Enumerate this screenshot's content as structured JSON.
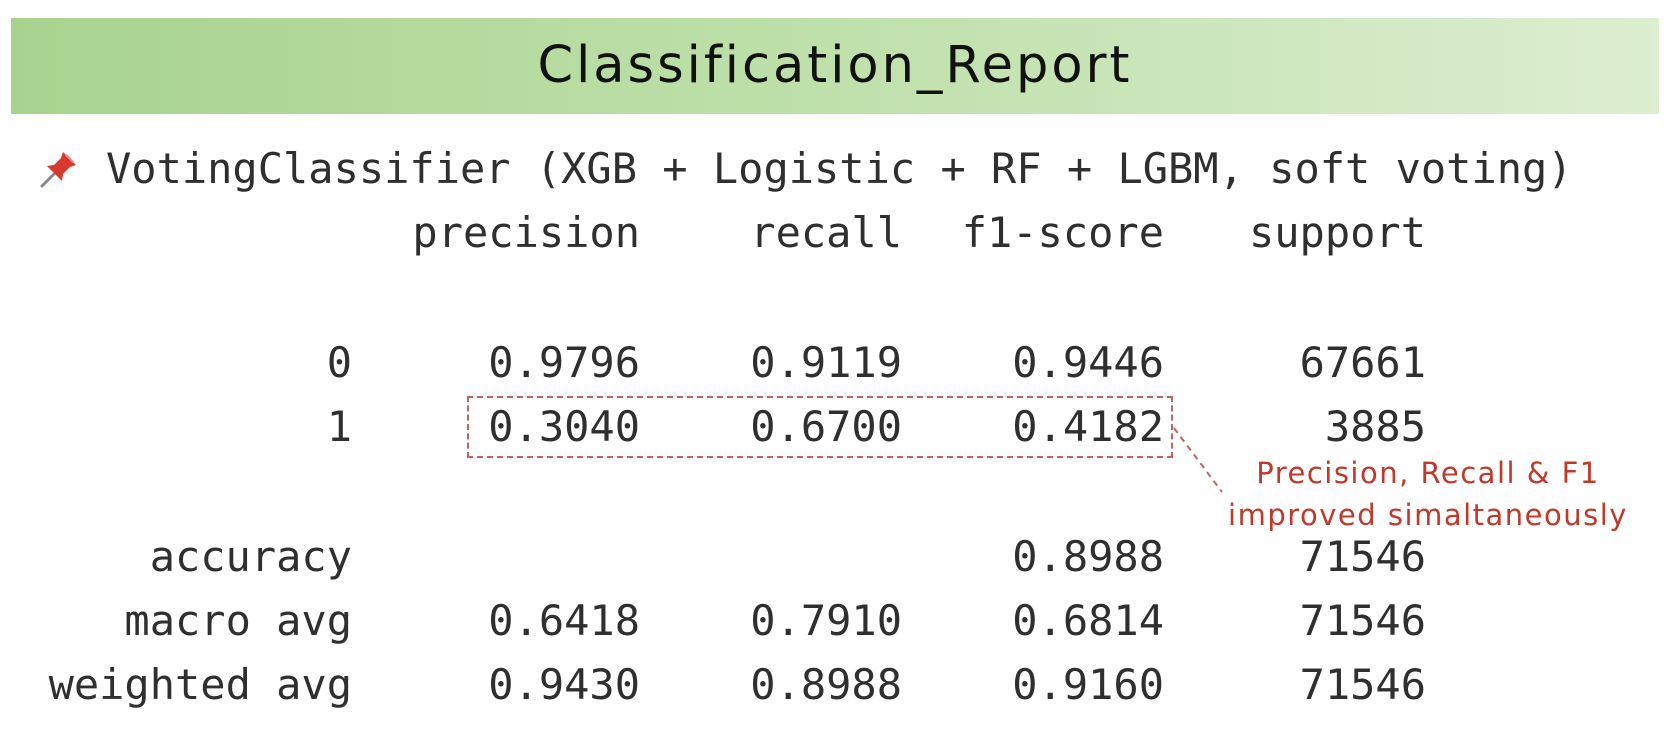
{
  "title": "Classification_Report",
  "model": {
    "pin_icon": "pushpin-icon",
    "label": "VotingClassifier (XGB + Logistic + RF + LGBM, soft voting)"
  },
  "report": {
    "columns": [
      "precision",
      "recall",
      "f1-score",
      "support"
    ],
    "classes": [
      {
        "label": "0",
        "precision": "0.9796",
        "recall": "0.9119",
        "f1": "0.9446",
        "support": "67661"
      },
      {
        "label": "1",
        "precision": "0.3040",
        "recall": "0.6700",
        "f1": "0.4182",
        "support": "3885"
      }
    ],
    "accuracy": {
      "label": "accuracy",
      "f1": "0.8988",
      "support": "71546"
    },
    "macro_avg": {
      "label": "macro avg",
      "precision": "0.6418",
      "recall": "0.7910",
      "f1": "0.6814",
      "support": "71546"
    },
    "weighted_avg": {
      "label": "weighted avg",
      "precision": "0.9430",
      "recall": "0.8988",
      "f1": "0.9160",
      "support": "71546"
    }
  },
  "annotation": {
    "line1": "Precision, Recall & F1",
    "line2": "improved simaltaneously",
    "color": "#c0392b"
  },
  "colors": {
    "header_gradient_start": "#a8d38f",
    "header_gradient_end": "#ddeed1",
    "highlight_border": "#c2645d"
  }
}
